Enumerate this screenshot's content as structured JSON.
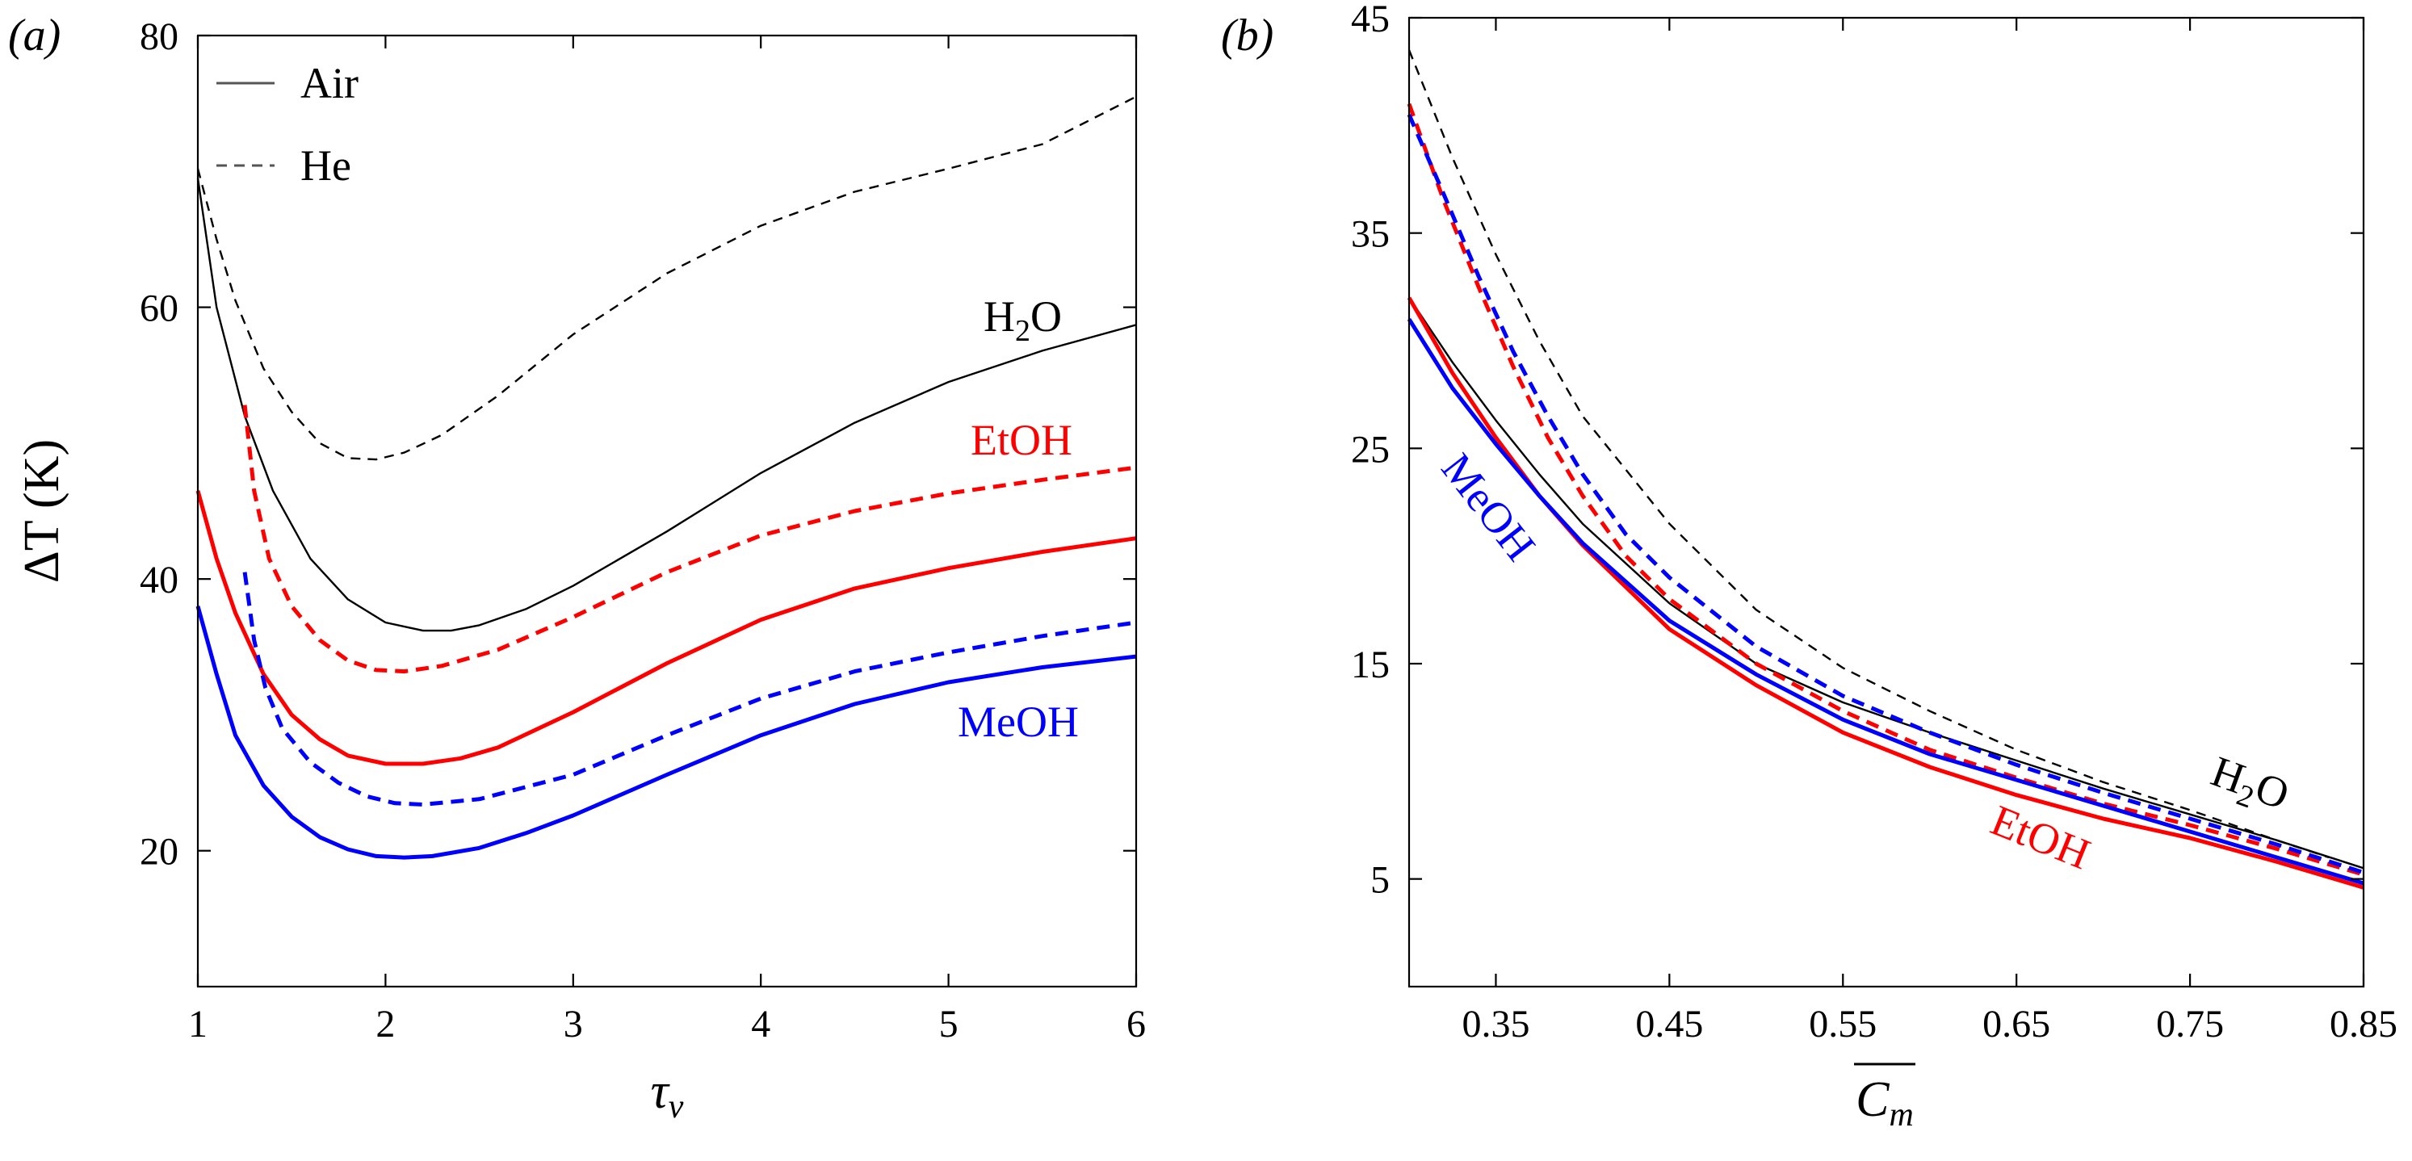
{
  "chart_data": [
    {
      "type": "line",
      "panel_label": "(a)",
      "xlabel": "τ",
      "xlabel_sub": "ν",
      "ylabel": "ΔT (K)",
      "xlim": [
        1,
        6
      ],
      "ylim": [
        10,
        80
      ],
      "xticks": [
        1,
        2,
        3,
        4,
        5,
        6
      ],
      "yticks": [
        20,
        40,
        60,
        80
      ],
      "legend": {
        "position": "top-left",
        "entries": [
          {
            "label": "Air",
            "style": "solid"
          },
          {
            "label": "He",
            "style": "dashed"
          }
        ]
      },
      "annotations": [
        {
          "text": "H",
          "sub": "2",
          "tail": "O",
          "color": "#000000"
        },
        {
          "text": "EtOH",
          "color": "#ff0000"
        },
        {
          "text": "MeOH",
          "color": "#0000ff"
        }
      ],
      "series": [
        {
          "name": "H2O Air",
          "fluid": "H2O",
          "gas": "Air",
          "color": "#000000",
          "style": "solid",
          "width": "thin",
          "x": [
            1.0,
            1.1,
            1.25,
            1.4,
            1.6,
            1.8,
            2.0,
            2.2,
            2.35,
            2.5,
            2.75,
            3.0,
            3.5,
            4.0,
            4.5,
            5.0,
            5.5,
            6.0
          ],
          "y": [
            69.5,
            60.0,
            52.0,
            46.5,
            41.5,
            38.5,
            36.8,
            36.2,
            36.2,
            36.6,
            37.8,
            39.5,
            43.5,
            47.8,
            51.5,
            54.5,
            56.8,
            58.7
          ]
        },
        {
          "name": "H2O He",
          "fluid": "H2O",
          "gas": "He",
          "color": "#000000",
          "style": "dashed",
          "width": "thin",
          "x": [
            1.0,
            1.1,
            1.2,
            1.35,
            1.5,
            1.65,
            1.8,
            1.95,
            2.1,
            2.3,
            2.6,
            3.0,
            3.5,
            4.0,
            4.5,
            5.0,
            5.5,
            6.0
          ],
          "y": [
            70.2,
            65.0,
            60.5,
            55.5,
            52.3,
            50.0,
            48.9,
            48.8,
            49.3,
            50.6,
            53.5,
            58.0,
            62.5,
            66.0,
            68.5,
            70.2,
            72.0,
            75.5
          ]
        },
        {
          "name": "EtOH Air",
          "fluid": "EtOH",
          "gas": "Air",
          "color": "#ff0000",
          "style": "solid",
          "width": "thick",
          "x": [
            1.0,
            1.1,
            1.2,
            1.35,
            1.5,
            1.65,
            1.8,
            2.0,
            2.2,
            2.4,
            2.6,
            3.0,
            3.5,
            4.0,
            4.5,
            5.0,
            5.5,
            6.0
          ],
          "y": [
            46.5,
            41.5,
            37.5,
            33.0,
            30.0,
            28.2,
            27.0,
            26.4,
            26.4,
            26.8,
            27.6,
            30.2,
            33.8,
            37.0,
            39.3,
            40.8,
            42.0,
            43.0
          ]
        },
        {
          "name": "EtOH He",
          "fluid": "EtOH",
          "gas": "He",
          "color": "#ff0000",
          "style": "dashed",
          "width": "thick",
          "x": [
            1.25,
            1.3,
            1.38,
            1.5,
            1.65,
            1.8,
            1.95,
            2.1,
            2.3,
            2.6,
            3.0,
            3.5,
            4.0,
            4.5,
            5.0,
            5.5,
            6.0
          ],
          "y": [
            52.8,
            46.5,
            41.5,
            38.0,
            35.5,
            34.0,
            33.3,
            33.2,
            33.6,
            34.8,
            37.2,
            40.5,
            43.2,
            45.0,
            46.3,
            47.3,
            48.2
          ]
        },
        {
          "name": "MeOH Air",
          "fluid": "MeOH",
          "gas": "Air",
          "color": "#0000ff",
          "style": "solid",
          "width": "thick",
          "x": [
            1.0,
            1.1,
            1.2,
            1.35,
            1.5,
            1.65,
            1.8,
            1.95,
            2.1,
            2.25,
            2.5,
            2.75,
            3.0,
            3.5,
            4.0,
            4.5,
            5.0,
            5.5,
            6.0
          ],
          "y": [
            38.0,
            33.0,
            28.5,
            24.8,
            22.5,
            21.0,
            20.1,
            19.6,
            19.5,
            19.6,
            20.2,
            21.3,
            22.6,
            25.6,
            28.5,
            30.8,
            32.4,
            33.5,
            34.3
          ]
        },
        {
          "name": "MeOH He",
          "fluid": "MeOH",
          "gas": "He",
          "color": "#0000ff",
          "style": "dashed",
          "width": "thick",
          "x": [
            1.25,
            1.3,
            1.36,
            1.45,
            1.6,
            1.75,
            1.9,
            2.05,
            2.2,
            2.5,
            3.0,
            3.5,
            4.0,
            4.5,
            5.0,
            5.5,
            6.0
          ],
          "y": [
            40.5,
            35.5,
            32.0,
            29.0,
            26.5,
            25.0,
            24.0,
            23.5,
            23.4,
            23.8,
            25.6,
            28.5,
            31.2,
            33.2,
            34.6,
            35.8,
            36.8
          ]
        }
      ]
    },
    {
      "type": "line",
      "panel_label": "(b)",
      "xlabel": "C",
      "xlabel_sub": "m",
      "ylabel": "",
      "xlim": [
        0.3,
        0.85
      ],
      "ylim": [
        0,
        45
      ],
      "xticks": [
        0.35,
        0.45,
        0.55,
        0.65,
        0.75,
        0.85
      ],
      "yticks": [
        5,
        15,
        25,
        35,
        45
      ],
      "annotations": [
        {
          "text": "H",
          "sub": "2",
          "tail": "O",
          "color": "#000000"
        },
        {
          "text": "EtOH",
          "color": "#ff0000"
        },
        {
          "text": "MeOH",
          "color": "#0000ff"
        }
      ],
      "series": [
        {
          "name": "H2O Air",
          "fluid": "H2O",
          "gas": "Air",
          "color": "#000000",
          "style": "solid",
          "width": "thin",
          "x": [
            0.3,
            0.325,
            0.35,
            0.375,
            0.4,
            0.45,
            0.5,
            0.55,
            0.6,
            0.65,
            0.7,
            0.75,
            0.8,
            0.85
          ],
          "y": [
            32.0,
            29.0,
            26.3,
            23.8,
            21.5,
            17.8,
            15.0,
            13.2,
            11.8,
            10.5,
            9.2,
            8.0,
            6.8,
            5.5
          ]
        },
        {
          "name": "H2O He",
          "fluid": "H2O",
          "gas": "He",
          "color": "#000000",
          "style": "dashed",
          "width": "thin",
          "x": [
            0.3,
            0.325,
            0.35,
            0.375,
            0.4,
            0.45,
            0.5,
            0.55,
            0.6,
            0.65,
            0.7,
            0.75,
            0.8,
            0.83
          ],
          "y": [
            43.5,
            38.5,
            34.0,
            30.0,
            26.5,
            21.5,
            17.5,
            14.8,
            12.8,
            11.0,
            9.5,
            8.2,
            6.8,
            6.0
          ]
        },
        {
          "name": "EtOH Air",
          "fluid": "EtOH",
          "gas": "Air",
          "color": "#ff0000",
          "style": "solid",
          "width": "thick",
          "x": [
            0.3,
            0.325,
            0.35,
            0.375,
            0.4,
            0.45,
            0.5,
            0.55,
            0.6,
            0.65,
            0.7,
            0.75,
            0.8,
            0.85
          ],
          "y": [
            32.0,
            28.5,
            25.5,
            22.8,
            20.5,
            16.6,
            14.0,
            11.8,
            10.2,
            8.9,
            7.8,
            6.9,
            5.8,
            4.6
          ]
        },
        {
          "name": "EtOH He",
          "fluid": "EtOH",
          "gas": "He",
          "color": "#ff0000",
          "style": "dashed",
          "width": "thick",
          "x": [
            0.3,
            0.32,
            0.34,
            0.36,
            0.38,
            0.4,
            0.425,
            0.45,
            0.5,
            0.55,
            0.6,
            0.65,
            0.7,
            0.75,
            0.8,
            0.85
          ],
          "y": [
            41.0,
            36.5,
            32.5,
            28.8,
            25.5,
            22.8,
            20.0,
            18.0,
            15.0,
            12.8,
            11.0,
            9.7,
            8.5,
            7.5,
            6.4,
            5.2
          ]
        },
        {
          "name": "MeOH Air",
          "fluid": "MeOH",
          "gas": "Air",
          "color": "#0000ff",
          "style": "solid",
          "width": "thick",
          "x": [
            0.3,
            0.325,
            0.35,
            0.375,
            0.4,
            0.45,
            0.5,
            0.55,
            0.6,
            0.65,
            0.7,
            0.75,
            0.8,
            0.85
          ],
          "y": [
            31.0,
            27.8,
            25.2,
            22.8,
            20.6,
            17.0,
            14.5,
            12.4,
            10.8,
            9.6,
            8.4,
            7.2,
            6.0,
            4.8
          ]
        },
        {
          "name": "MeOH He",
          "fluid": "MeOH",
          "gas": "He",
          "color": "#0000ff",
          "style": "dashed",
          "width": "thick",
          "x": [
            0.3,
            0.32,
            0.34,
            0.36,
            0.38,
            0.4,
            0.425,
            0.45,
            0.5,
            0.55,
            0.6,
            0.65,
            0.7,
            0.75,
            0.8,
            0.85
          ],
          "y": [
            40.5,
            36.8,
            33.0,
            29.5,
            26.5,
            23.8,
            21.0,
            19.0,
            15.8,
            13.5,
            11.8,
            10.3,
            9.0,
            7.8,
            6.6,
            5.3
          ]
        }
      ]
    }
  ]
}
